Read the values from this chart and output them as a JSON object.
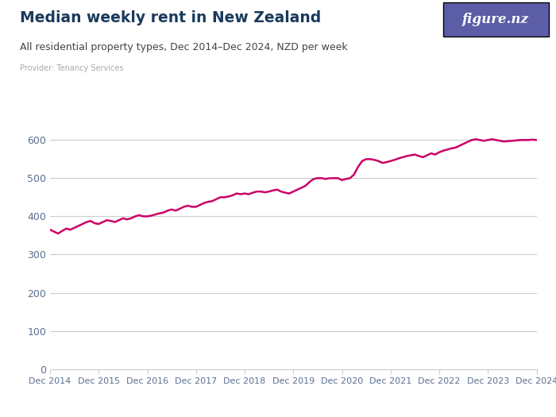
{
  "title": "Median weekly rent in New Zealand",
  "subtitle": "All residential property types, Dec 2014–Dec 2024, NZD per week",
  "provider": "Provider: Tenancy Services",
  "line_color": "#cc0066",
  "background_color": "#ffffff",
  "title_color": "#1a3a5c",
  "subtitle_color": "#444444",
  "provider_color": "#aaaaaa",
  "grid_color": "#cccccc",
  "axis_color": "#cccccc",
  "tick_label_color": "#5a7090",
  "ylim": [
    0,
    650
  ],
  "yticks": [
    0,
    100,
    200,
    300,
    400,
    500,
    600
  ],
  "x_labels": [
    "Dec 2014",
    "Dec 2015",
    "Dec 2016",
    "Dec 2017",
    "Dec 2018",
    "Dec 2019",
    "Dec 2020",
    "Dec 2021",
    "Dec 2022",
    "Dec 2023",
    "Dec 2024"
  ],
  "x_positions": [
    0,
    12,
    24,
    36,
    48,
    60,
    72,
    84,
    96,
    108,
    120
  ],
  "data": [
    [
      0,
      365
    ],
    [
      1,
      360
    ],
    [
      2,
      355
    ],
    [
      3,
      362
    ],
    [
      4,
      368
    ],
    [
      5,
      365
    ],
    [
      6,
      370
    ],
    [
      7,
      375
    ],
    [
      8,
      380
    ],
    [
      9,
      385
    ],
    [
      10,
      388
    ],
    [
      11,
      382
    ],
    [
      12,
      380
    ],
    [
      13,
      385
    ],
    [
      14,
      390
    ],
    [
      15,
      388
    ],
    [
      16,
      385
    ],
    [
      17,
      390
    ],
    [
      18,
      395
    ],
    [
      19,
      392
    ],
    [
      20,
      395
    ],
    [
      21,
      400
    ],
    [
      22,
      403
    ],
    [
      23,
      400
    ],
    [
      24,
      400
    ],
    [
      25,
      402
    ],
    [
      26,
      405
    ],
    [
      27,
      408
    ],
    [
      28,
      410
    ],
    [
      29,
      415
    ],
    [
      30,
      418
    ],
    [
      31,
      415
    ],
    [
      32,
      420
    ],
    [
      33,
      425
    ],
    [
      34,
      428
    ],
    [
      35,
      425
    ],
    [
      36,
      425
    ],
    [
      37,
      430
    ],
    [
      38,
      435
    ],
    [
      39,
      438
    ],
    [
      40,
      440
    ],
    [
      41,
      445
    ],
    [
      42,
      450
    ],
    [
      43,
      450
    ],
    [
      44,
      452
    ],
    [
      45,
      455
    ],
    [
      46,
      460
    ],
    [
      47,
      458
    ],
    [
      48,
      460
    ],
    [
      49,
      458
    ],
    [
      50,
      462
    ],
    [
      51,
      465
    ],
    [
      52,
      465
    ],
    [
      53,
      463
    ],
    [
      54,
      465
    ],
    [
      55,
      468
    ],
    [
      56,
      470
    ],
    [
      57,
      465
    ],
    [
      58,
      462
    ],
    [
      59,
      460
    ],
    [
      60,
      465
    ],
    [
      61,
      470
    ],
    [
      62,
      475
    ],
    [
      63,
      480
    ],
    [
      64,
      490
    ],
    [
      65,
      498
    ],
    [
      66,
      500
    ],
    [
      67,
      500
    ],
    [
      68,
      498
    ],
    [
      69,
      500
    ],
    [
      70,
      500
    ],
    [
      71,
      500
    ],
    [
      72,
      495
    ],
    [
      73,
      498
    ],
    [
      74,
      500
    ],
    [
      75,
      510
    ],
    [
      76,
      530
    ],
    [
      77,
      545
    ],
    [
      78,
      550
    ],
    [
      79,
      550
    ],
    [
      80,
      548
    ],
    [
      81,
      545
    ],
    [
      82,
      540
    ],
    [
      83,
      542
    ],
    [
      84,
      545
    ],
    [
      85,
      548
    ],
    [
      86,
      552
    ],
    [
      87,
      555
    ],
    [
      88,
      558
    ],
    [
      89,
      560
    ],
    [
      90,
      562
    ],
    [
      91,
      558
    ],
    [
      92,
      555
    ],
    [
      93,
      560
    ],
    [
      94,
      565
    ],
    [
      95,
      562
    ],
    [
      96,
      568
    ],
    [
      97,
      572
    ],
    [
      98,
      575
    ],
    [
      99,
      578
    ],
    [
      100,
      580
    ],
    [
      101,
      585
    ],
    [
      102,
      590
    ],
    [
      103,
      595
    ],
    [
      104,
      600
    ],
    [
      105,
      602
    ],
    [
      106,
      600
    ],
    [
      107,
      598
    ],
    [
      108,
      600
    ],
    [
      109,
      602
    ],
    [
      110,
      600
    ],
    [
      111,
      598
    ],
    [
      112,
      596
    ],
    [
      113,
      597
    ],
    [
      114,
      598
    ],
    [
      115,
      599
    ],
    [
      116,
      600
    ],
    [
      117,
      600
    ],
    [
      118,
      600
    ],
    [
      119,
      601
    ],
    [
      120,
      600
    ]
  ],
  "logo_bg_color": "#5b5ea6",
  "logo_text": "figure.nz",
  "logo_text_color": "#ffffff"
}
